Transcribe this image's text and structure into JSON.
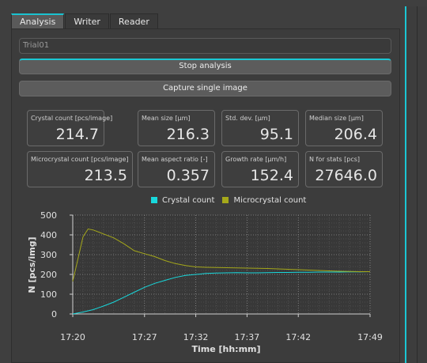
{
  "tabs": [
    "Analysis",
    "Writer",
    "Reader"
  ],
  "trial_name": "Trial01",
  "buttons": {
    "stop": "Stop analysis",
    "capture": "Capture single image"
  },
  "stats": [
    {
      "label": "Crystal count [pcs/image]",
      "value": "214.7"
    },
    {
      "label": "Mean size [µm]",
      "value": "216.3"
    },
    {
      "label": "Std. dev. [µm]",
      "value": "95.1"
    },
    {
      "label": "Median size [µm]",
      "value": "206.4"
    },
    {
      "label": "Microcrystal count [pcs/image]",
      "value": "213.5"
    },
    {
      "label": "Mean aspect ratio [-]",
      "value": "0.357"
    },
    {
      "label": "Growth rate [µm/h]",
      "value": "152.4"
    },
    {
      "label": "N for stats [pcs]",
      "value": "27646.0"
    }
  ],
  "colors": {
    "accent": "#1bc7d4",
    "crystal": "#18d8dc",
    "microcrystal": "#a5a81a"
  },
  "chart_data": {
    "type": "line",
    "xlabel": "Time [hh:mm]",
    "ylabel": "N [pcs/img]",
    "x_ticks": [
      "17:20",
      "17:27",
      "17:32",
      "17:37",
      "17:42",
      "17:49"
    ],
    "ylim": [
      0,
      500
    ],
    "y_ticks": [
      "0",
      "100",
      "200",
      "300",
      "400",
      "500"
    ],
    "xlim": [
      0,
      29
    ],
    "grid": true,
    "legend_position": "top-center",
    "series": [
      {
        "name": "Crystal count",
        "color": "#18d8dc",
        "x": [
          0,
          1,
          2,
          3,
          4,
          5,
          6,
          7,
          8,
          9,
          10,
          11,
          12,
          13,
          14,
          15,
          16,
          17,
          18,
          19,
          20,
          21,
          22,
          23,
          24,
          25,
          26,
          27,
          28,
          29
        ],
        "y": [
          0,
          10,
          22,
          40,
          60,
          85,
          110,
          135,
          155,
          170,
          185,
          195,
          200,
          205,
          207,
          208,
          209,
          208,
          208,
          209,
          210,
          210,
          211,
          211,
          212,
          212,
          212,
          213,
          213,
          214
        ]
      },
      {
        "name": "Microcrystal count",
        "color": "#a5a81a",
        "x": [
          0,
          1,
          1.5,
          2,
          3,
          4,
          5,
          6,
          7,
          8,
          9,
          10,
          11,
          12,
          13,
          14,
          15,
          16,
          17,
          18,
          19,
          20,
          21,
          22,
          23,
          24,
          25,
          26,
          27,
          28,
          29
        ],
        "y": [
          165,
          390,
          430,
          425,
          405,
          385,
          355,
          320,
          305,
          290,
          270,
          255,
          245,
          238,
          236,
          235,
          234,
          233,
          232,
          231,
          230,
          228,
          226,
          224,
          222,
          220,
          218,
          216,
          215,
          214,
          214
        ]
      }
    ]
  }
}
